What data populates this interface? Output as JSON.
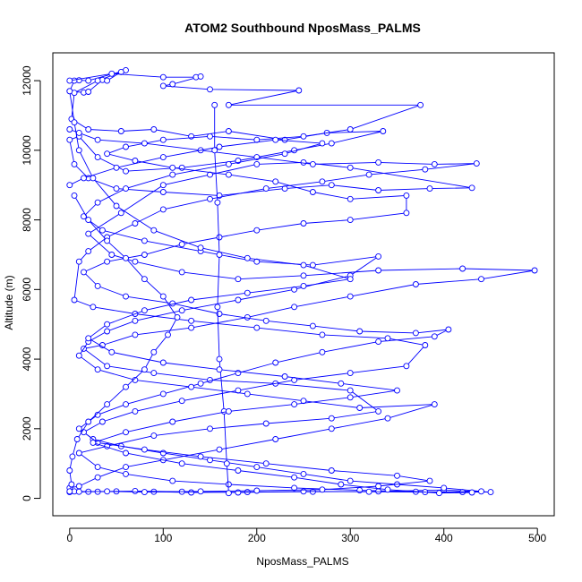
{
  "chart_data": {
    "type": "line",
    "title": "ATOM2 Southbound NposMass_PALMS",
    "xlabel": "NposMass_PALMS",
    "ylabel": "Altitude (m)",
    "xlim": [
      -18,
      518
    ],
    "ylim": [
      -500,
      12800
    ],
    "xticks": [
      0,
      100,
      200,
      300,
      400,
      500
    ],
    "yticks": [
      0,
      2000,
      4000,
      6000,
      8000,
      10000,
      12000
    ],
    "grid": false,
    "line_style": "lines with open-circle markers",
    "colors": {
      "series": "#0000ff",
      "axis": "#000000"
    },
    "series": [
      {
        "points": [
          [
            60,
            12300
          ],
          [
            20,
            12000
          ],
          [
            10,
            12010
          ],
          [
            5,
            12000
          ],
          [
            0,
            11700
          ],
          [
            15,
            11660
          ],
          [
            20,
            11680
          ],
          [
            35,
            12020
          ],
          [
            40,
            12000
          ],
          [
            55,
            12250
          ],
          [
            30,
            12000
          ],
          [
            5,
            11650
          ],
          [
            2,
            10900
          ],
          [
            20,
            10600
          ],
          [
            55,
            10550
          ],
          [
            90,
            10600
          ],
          [
            130,
            10400
          ],
          [
            170,
            10550
          ],
          [
            230,
            10300
          ],
          [
            275,
            10500
          ],
          [
            335,
            10550
          ],
          [
            280,
            10200
          ],
          [
            240,
            10000
          ],
          [
            180,
            9700
          ],
          [
            120,
            9500
          ],
          [
            60,
            9400
          ],
          [
            30,
            9800
          ],
          [
            10,
            10400
          ],
          [
            0,
            10300
          ],
          [
            5,
            9600
          ],
          [
            20,
            9200
          ],
          [
            50,
            8900
          ],
          [
            100,
            8800
          ],
          [
            160,
            8700
          ],
          [
            230,
            8900
          ],
          [
            280,
            9000
          ],
          [
            330,
            8850
          ],
          [
            385,
            8900
          ],
          [
            430,
            8920
          ],
          [
            300,
            9500
          ],
          [
            250,
            9650
          ],
          [
            200,
            9600
          ],
          [
            150,
            9300
          ],
          [
            100,
            9000
          ],
          [
            55,
            8200
          ],
          [
            20,
            7600
          ],
          [
            45,
            7000
          ],
          [
            70,
            6800
          ],
          [
            120,
            6500
          ],
          [
            180,
            6300
          ],
          [
            250,
            6400
          ],
          [
            330,
            6550
          ],
          [
            420,
            6600
          ],
          [
            497,
            6550
          ],
          [
            440,
            6300
          ],
          [
            370,
            6150
          ],
          [
            300,
            5800
          ],
          [
            240,
            5500
          ],
          [
            190,
            5200
          ],
          [
            130,
            4900
          ],
          [
            70,
            4700
          ],
          [
            35,
            4400
          ],
          [
            15,
            4300
          ],
          [
            40,
            3800
          ],
          [
            90,
            3600
          ],
          [
            150,
            3400
          ],
          [
            220,
            3300
          ],
          [
            300,
            3100
          ],
          [
            330,
            2500
          ],
          [
            280,
            2300
          ],
          [
            210,
            2150
          ],
          [
            150,
            2000
          ],
          [
            90,
            1800
          ],
          [
            40,
            1500
          ],
          [
            10,
            1300
          ],
          [
            30,
            900
          ],
          [
            60,
            700
          ],
          [
            110,
            500
          ],
          [
            170,
            400
          ],
          [
            240,
            300
          ],
          [
            310,
            230
          ],
          [
            370,
            190
          ],
          [
            420,
            180
          ],
          [
            450,
            180
          ],
          [
            400,
            240
          ],
          [
            330,
            200
          ],
          [
            260,
            190
          ],
          [
            190,
            180
          ],
          [
            130,
            170
          ],
          [
            90,
            190
          ],
          [
            50,
            200
          ],
          [
            20,
            190
          ],
          [
            0,
            180
          ]
        ]
      },
      {
        "points": [
          [
            0,
            12000
          ],
          [
            45,
            12200
          ],
          [
            100,
            12100
          ],
          [
            135,
            12100
          ],
          [
            140,
            12120
          ],
          [
            110,
            11900
          ],
          [
            100,
            11850
          ],
          [
            150,
            11750
          ],
          [
            245,
            11720
          ],
          [
            170,
            11300
          ],
          [
            375,
            11300
          ],
          [
            300,
            10600
          ],
          [
            250,
            10400
          ],
          [
            200,
            10300
          ],
          [
            150,
            10400
          ],
          [
            100,
            10300
          ],
          [
            60,
            10100
          ],
          [
            40,
            9900
          ],
          [
            70,
            9700
          ],
          [
            110,
            9500
          ],
          [
            170,
            9300
          ],
          [
            220,
            9100
          ],
          [
            260,
            8800
          ],
          [
            300,
            8600
          ],
          [
            360,
            8700
          ],
          [
            360,
            8200
          ],
          [
            300,
            8000
          ],
          [
            250,
            7900
          ],
          [
            200,
            7700
          ],
          [
            160,
            7500
          ],
          [
            120,
            7300
          ],
          [
            80,
            7000
          ],
          [
            40,
            6800
          ],
          [
            15,
            6500
          ],
          [
            30,
            6100
          ],
          [
            60,
            5800
          ],
          [
            110,
            5600
          ],
          [
            160,
            5300
          ],
          [
            210,
            5100
          ],
          [
            260,
            4950
          ],
          [
            310,
            4800
          ],
          [
            370,
            4750
          ],
          [
            405,
            4850
          ],
          [
            390,
            4650
          ],
          [
            330,
            4500
          ],
          [
            270,
            4200
          ],
          [
            220,
            3900
          ],
          [
            180,
            3600
          ],
          [
            140,
            3300
          ],
          [
            100,
            3000
          ],
          [
            60,
            2700
          ],
          [
            30,
            2400
          ],
          [
            10,
            2000
          ],
          [
            25,
            1700
          ],
          [
            55,
            1500
          ],
          [
            100,
            1300
          ],
          [
            150,
            1100
          ],
          [
            200,
            900
          ],
          [
            250,
            700
          ],
          [
            300,
            500
          ],
          [
            350,
            400
          ],
          [
            400,
            300
          ],
          [
            440,
            200
          ],
          [
            380,
            180
          ],
          [
            320,
            190
          ],
          [
            250,
            200
          ],
          [
            180,
            170
          ],
          [
            120,
            190
          ],
          [
            70,
            210
          ],
          [
            30,
            190
          ],
          [
            5,
            200
          ]
        ]
      },
      {
        "points": [
          [
            0,
            10600
          ],
          [
            10,
            10500
          ],
          [
            30,
            10300
          ],
          [
            80,
            10200
          ],
          [
            140,
            10000
          ],
          [
            200,
            9800
          ],
          [
            260,
            9600
          ],
          [
            330,
            9650
          ],
          [
            390,
            9600
          ],
          [
            435,
            9620
          ],
          [
            380,
            9450
          ],
          [
            320,
            9300
          ],
          [
            270,
            9100
          ],
          [
            210,
            8900
          ],
          [
            150,
            8600
          ],
          [
            100,
            8300
          ],
          [
            70,
            7900
          ],
          [
            40,
            7500
          ],
          [
            20,
            7100
          ],
          [
            10,
            6800
          ],
          [
            5,
            5700
          ],
          [
            25,
            5500
          ],
          [
            70,
            5300
          ],
          [
            130,
            5100
          ],
          [
            200,
            4900
          ],
          [
            270,
            4700
          ],
          [
            340,
            4600
          ],
          [
            380,
            4400
          ],
          [
            360,
            3800
          ],
          [
            300,
            3600
          ],
          [
            240,
            3400
          ],
          [
            180,
            3100
          ],
          [
            120,
            2800
          ],
          [
            70,
            2500
          ],
          [
            35,
            2200
          ],
          [
            15,
            1900
          ],
          [
            30,
            1600
          ],
          [
            80,
            1400
          ],
          [
            140,
            1200
          ],
          [
            210,
            1000
          ],
          [
            280,
            800
          ],
          [
            350,
            650
          ],
          [
            385,
            500
          ],
          [
            330,
            350
          ],
          [
            270,
            250
          ],
          [
            200,
            220
          ],
          [
            140,
            200
          ],
          [
            80,
            180
          ],
          [
            40,
            200
          ],
          [
            10,
            190
          ]
        ]
      },
      {
        "points": [
          [
            0,
            9000
          ],
          [
            15,
            9200
          ],
          [
            50,
            9500
          ],
          [
            100,
            9800
          ],
          [
            160,
            10100
          ],
          [
            220,
            10300
          ],
          [
            270,
            10200
          ],
          [
            230,
            9900
          ],
          [
            170,
            9600
          ],
          [
            110,
            9300
          ],
          [
            60,
            8900
          ],
          [
            30,
            8500
          ],
          [
            15,
            8100
          ],
          [
            35,
            7700
          ],
          [
            80,
            7400
          ],
          [
            140,
            7100
          ],
          [
            200,
            6800
          ],
          [
            260,
            6700
          ],
          [
            330,
            6950
          ],
          [
            300,
            6400
          ],
          [
            240,
            6000
          ],
          [
            180,
            5700
          ],
          [
            120,
            5400
          ],
          [
            70,
            5100
          ],
          [
            40,
            4800
          ],
          [
            20,
            4500
          ],
          [
            10,
            4100
          ],
          [
            30,
            3700
          ],
          [
            70,
            3400
          ],
          [
            130,
            3200
          ],
          [
            190,
            3000
          ],
          [
            250,
            2800
          ],
          [
            310,
            2600
          ],
          [
            390,
            2700
          ],
          [
            340,
            2300
          ],
          [
            280,
            2000
          ],
          [
            220,
            1700
          ],
          [
            160,
            1400
          ],
          [
            100,
            1100
          ],
          [
            60,
            900
          ],
          [
            30,
            600
          ],
          [
            10,
            350
          ],
          [
            0,
            300
          ]
        ]
      },
      {
        "points": [
          [
            5,
            8700
          ],
          [
            20,
            8000
          ],
          [
            40,
            7400
          ],
          [
            60,
            6900
          ],
          [
            80,
            6300
          ],
          [
            100,
            5800
          ],
          [
            115,
            5200
          ],
          [
            105,
            4700
          ],
          [
            90,
            4200
          ],
          [
            80,
            3700
          ],
          [
            60,
            3200
          ],
          [
            40,
            2700
          ],
          [
            20,
            2200
          ],
          [
            8,
            1700
          ],
          [
            3,
            1200
          ],
          [
            0,
            800
          ],
          [
            2,
            400
          ],
          [
            0,
            200
          ]
        ]
      },
      {
        "points": [
          [
            155,
            11300
          ],
          [
            155,
            10000
          ],
          [
            158,
            8500
          ],
          [
            160,
            7000
          ],
          [
            158,
            5500
          ],
          [
            160,
            4000
          ],
          [
            165,
            2500
          ],
          [
            168,
            1000
          ],
          [
            170,
            150
          ]
        ]
      },
      {
        "points": [
          [
            0,
            11700
          ],
          [
            5,
            10800
          ],
          [
            10,
            10000
          ],
          [
            25,
            9200
          ],
          [
            50,
            8400
          ],
          [
            90,
            7700
          ],
          [
            140,
            7200
          ],
          [
            190,
            6900
          ],
          [
            250,
            6700
          ],
          [
            300,
            6300
          ],
          [
            250,
            6100
          ],
          [
            190,
            5900
          ],
          [
            130,
            5700
          ],
          [
            80,
            5400
          ],
          [
            40,
            5000
          ],
          [
            20,
            4600
          ],
          [
            45,
            4200
          ],
          [
            100,
            3900
          ],
          [
            160,
            3700
          ],
          [
            230,
            3500
          ],
          [
            290,
            3300
          ],
          [
            350,
            3100
          ],
          [
            300,
            2900
          ],
          [
            240,
            2700
          ],
          [
            170,
            2500
          ],
          [
            110,
            2200
          ],
          [
            60,
            1900
          ],
          [
            25,
            1600
          ],
          [
            60,
            1300
          ],
          [
            120,
            1000
          ],
          [
            180,
            800
          ],
          [
            240,
            600
          ],
          [
            290,
            400
          ],
          [
            340,
            250
          ],
          [
            395,
            150
          ],
          [
            430,
            170
          ]
        ]
      }
    ]
  }
}
